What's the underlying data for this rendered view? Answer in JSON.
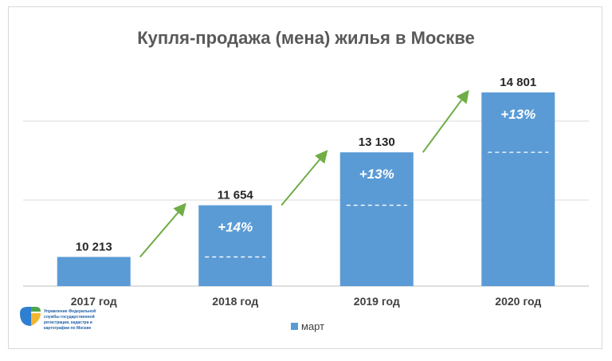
{
  "chart_data": {
    "type": "bar",
    "title": "Купля-продажа (мена) жилья в Москве",
    "categories": [
      "2017 год",
      "2018 год",
      "2019 год",
      "2020 год"
    ],
    "series": [
      {
        "name": "март",
        "values": [
          10213,
          11654,
          13130,
          14801
        ]
      }
    ],
    "value_labels": [
      "10 213",
      "11 654",
      "13 130",
      "14 801"
    ],
    "growth_labels": [
      "",
      "+14%",
      "+13%",
      "+13%"
    ],
    "ylim": [
      9400,
      15000
    ],
    "gridlines": [
      11800,
      14000
    ],
    "legend_position": "bottom",
    "colors": {
      "bar": "#5b9bd5",
      "arrow": "#70ad47",
      "grid": "#d9d9d9"
    }
  },
  "logo": {
    "text_lines": [
      "Управление Федеральной",
      "службы государственной",
      "регистрации, кадастра и",
      "картографии по Москве"
    ]
  }
}
